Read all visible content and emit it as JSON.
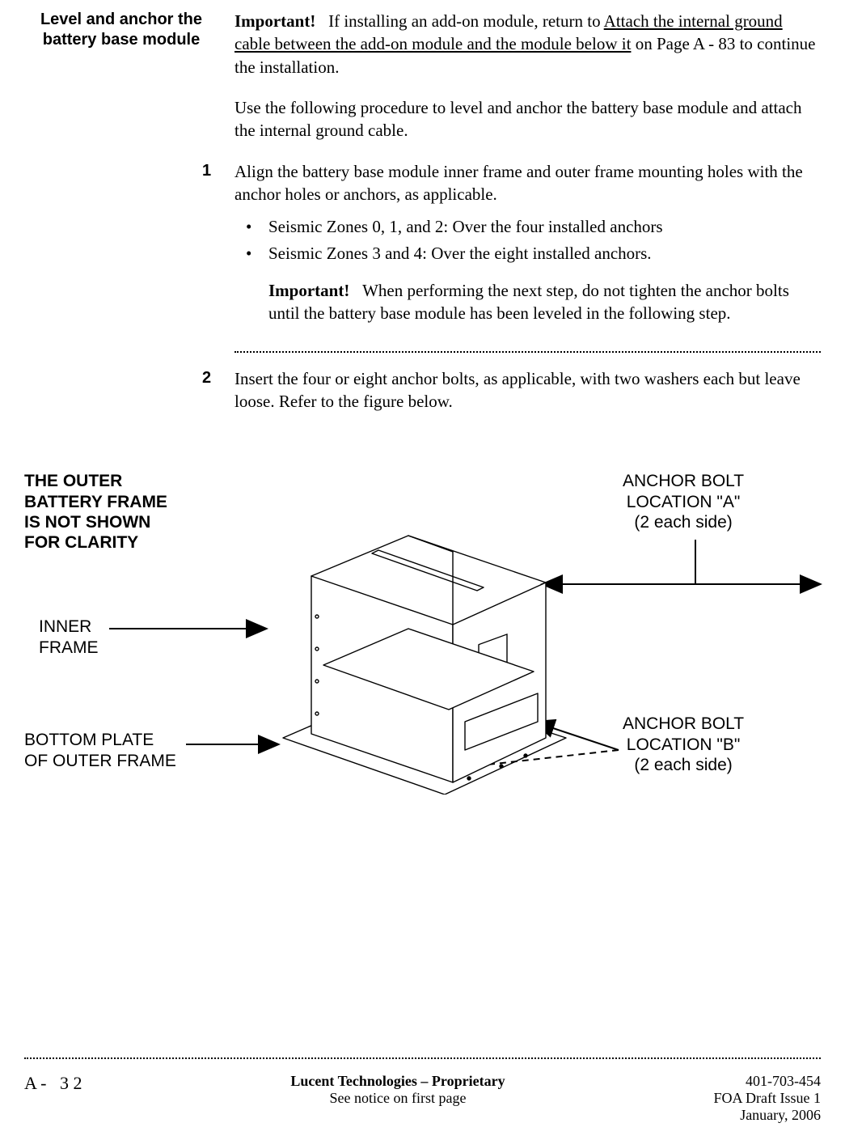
{
  "sideHeading": "Level and anchor the\nbattery base module",
  "importantLabel": "Important!",
  "topImportant": {
    "pre": "If installing an add-on module, return to ",
    "link": "Attach the internal ground cable between the add-on module and the module below it",
    "post": " on Page  A - 83 to continue the installation."
  },
  "introPara": "Use the following procedure to level and anchor the battery base module and attach the internal ground cable.",
  "step1": {
    "num": "1",
    "text": "Align the battery base module inner frame and outer frame mounting holes with the anchor holes or anchors, as applicable.",
    "bullets": [
      "Seismic Zones 0, 1, and 2: Over the four installed anchors",
      "Seismic Zones 3 and 4: Over the eight installed anchors."
    ],
    "innerImportant": "When performing the next step, do not tighten the anchor bolts until the battery base module has been leveled in the following step."
  },
  "step2": {
    "num": "2",
    "text": "Insert the four or eight anchor bolts, as applicable, with two washers each but leave loose. Refer to the figure below."
  },
  "figure": {
    "noteBold": "THE OUTER\nBATTERY FRAME\nIS NOT SHOWN\nFOR CLARITY",
    "innerFrame": "INNER\nFRAME",
    "bottomPlate": "BOTTOM PLATE\nOF OUTER FRAME",
    "boltA": "ANCHOR BOLT\nLOCATION \"A\"\n(2 each side)",
    "boltB": "ANCHOR BOLT\nLOCATION \"B\"\n(2 each side)"
  },
  "footer": {
    "left": "A -   3 2",
    "centerLine1": "Lucent Technologies – Proprietary",
    "centerLine2": "See notice on first page",
    "right": "401-703-454\nFOA Draft Issue 1\nJanuary, 2006"
  }
}
